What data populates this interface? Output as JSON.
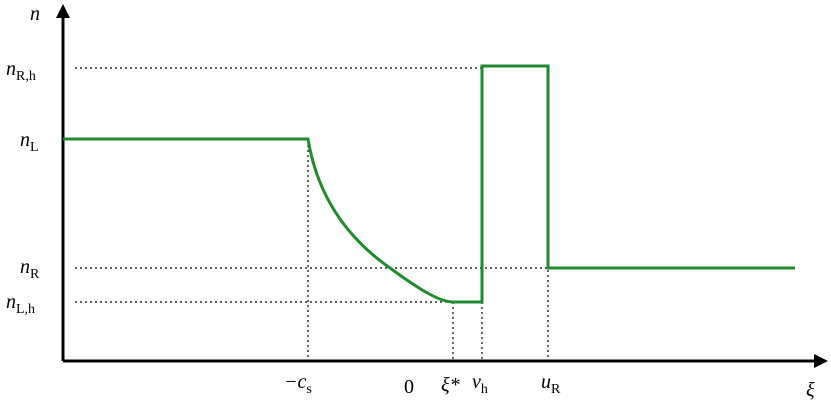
{
  "axes": {
    "y_label": "n",
    "x_label": "ξ"
  },
  "y_labels": [
    {
      "main": "n",
      "sub": "R,h"
    },
    {
      "main": "n",
      "sub": "L"
    },
    {
      "main": "n",
      "sub": "R"
    },
    {
      "main": "n",
      "sub": "L,h"
    }
  ],
  "x_labels": [
    {
      "main": "−c",
      "sub": "s"
    },
    {
      "main": "0"
    },
    {
      "main": "ξ*"
    },
    {
      "main": "v",
      "sub": "h"
    },
    {
      "main": "u",
      "sub": "R"
    }
  ]
}
